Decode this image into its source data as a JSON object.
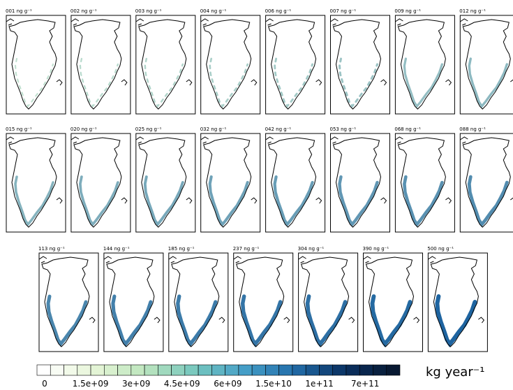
{
  "panels": {
    "rows": [
      [
        "001 ng g⁻¹",
        "002 ng g⁻¹",
        "003 ng g⁻¹",
        "004 ng g⁻¹",
        "006 ng g⁻¹",
        "007 ng g⁻¹",
        "009 ng g⁻¹",
        "012 ng g⁻¹"
      ],
      [
        "015 ng g⁻¹",
        "020 ng g⁻¹",
        "025 ng g⁻¹",
        "032 ng g⁻¹",
        "042 ng g⁻¹",
        "053 ng g⁻¹",
        "068 ng g⁻¹",
        "088 ng g⁻¹"
      ],
      [
        "113 ng g⁻¹",
        "144 ng g⁻¹",
        "185 ng g⁻¹",
        "237 ng g⁻¹",
        "304 ng g⁻¹",
        "390 ng g⁻¹",
        "500 ng g⁻¹"
      ]
    ]
  },
  "colorbar": {
    "tick_labels": [
      "0",
      "1.5e+09",
      "3e+09",
      "4.5e+09",
      "6e+09",
      "1.5e+10",
      "1e+11",
      "7e+11"
    ],
    "unit": "kg year⁻¹"
  }
}
